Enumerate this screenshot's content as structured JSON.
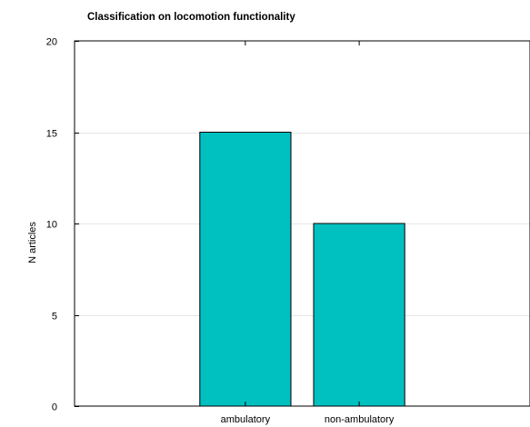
{
  "chart_data": {
    "type": "bar",
    "title": "Classification on locomotion functionality",
    "xlabel": "",
    "ylabel": "N articles",
    "categories": [
      "ambulatory",
      "non-ambulatory"
    ],
    "values": [
      15,
      10
    ],
    "ylim": [
      0,
      20
    ],
    "yticks": [
      0,
      5,
      10,
      15,
      20
    ],
    "grid": "horizontal",
    "bar_color": "#00c0c0",
    "bar_edge_color": "#000000",
    "grid_color": "#e6e6e6"
  }
}
